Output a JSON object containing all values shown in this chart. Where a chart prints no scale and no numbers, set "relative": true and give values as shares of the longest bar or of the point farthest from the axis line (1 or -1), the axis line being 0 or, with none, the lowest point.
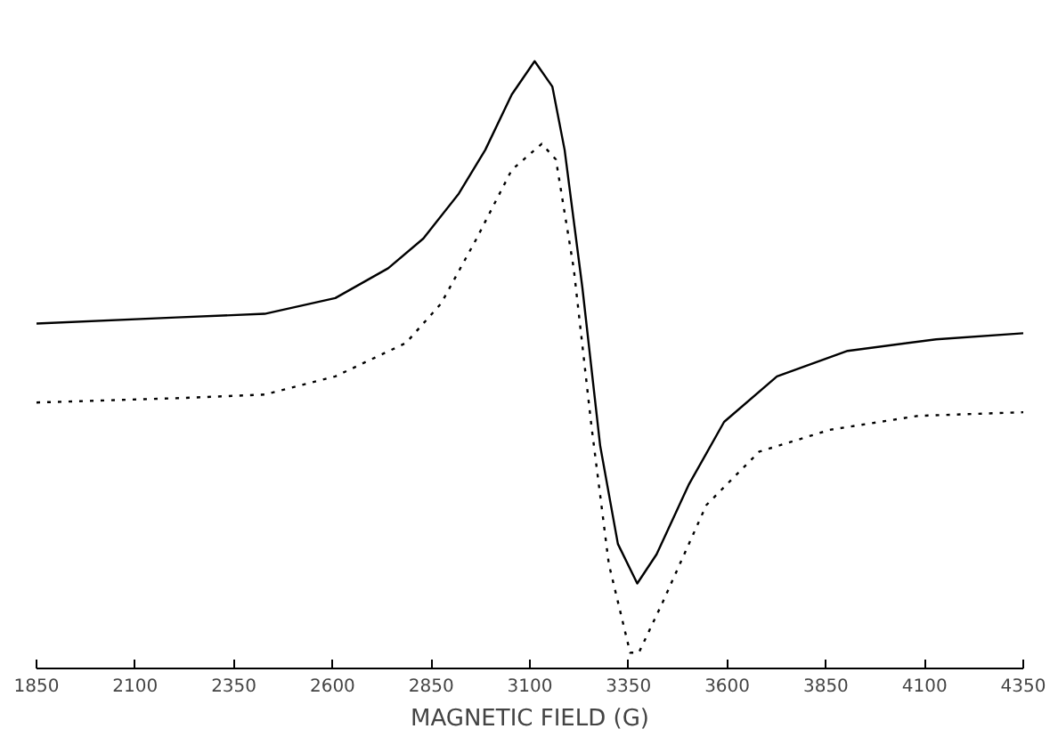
{
  "chart_data": {
    "type": "line",
    "xlabel": "MAGNETIC FIELD (G)",
    "relative": true,
    "xlim": [
      1850,
      4350
    ],
    "xticks": [
      1850,
      2100,
      2350,
      2600,
      2850,
      3100,
      3350,
      3600,
      3850,
      4100,
      4350
    ],
    "grid": false,
    "marker": "none",
    "series": [
      {
        "color": "#000000",
        "line_style": "solid",
        "x": [
          1850,
          2204,
          2428,
          2607,
          2741,
          2830,
          2920,
          2987,
          3054,
          3112,
          3157,
          3188,
          3233,
          3278,
          3323,
          3372,
          3421,
          3502,
          3592,
          3726,
          3905,
          4129,
          4350
        ],
        "values": [
          0.568,
          0.578,
          0.584,
          0.61,
          0.659,
          0.708,
          0.782,
          0.854,
          0.945,
          1.0,
          0.958,
          0.854,
          0.627,
          0.367,
          0.205,
          0.14,
          0.188,
          0.302,
          0.406,
          0.481,
          0.523,
          0.542,
          0.552
        ]
      },
      {
        "color": "#000000",
        "line_style": "dotted",
        "x": [
          1850,
          2204,
          2428,
          2607,
          2786,
          2875,
          2965,
          3054,
          3130,
          3166,
          3211,
          3256,
          3300,
          3354,
          3376,
          3435,
          3547,
          3681,
          3860,
          4084,
          4350
        ],
        "values": [
          0.438,
          0.445,
          0.451,
          0.481,
          0.536,
          0.601,
          0.708,
          0.821,
          0.864,
          0.838,
          0.659,
          0.399,
          0.172,
          0.026,
          0.026,
          0.107,
          0.269,
          0.357,
          0.393,
          0.416,
          0.422
        ]
      }
    ]
  }
}
